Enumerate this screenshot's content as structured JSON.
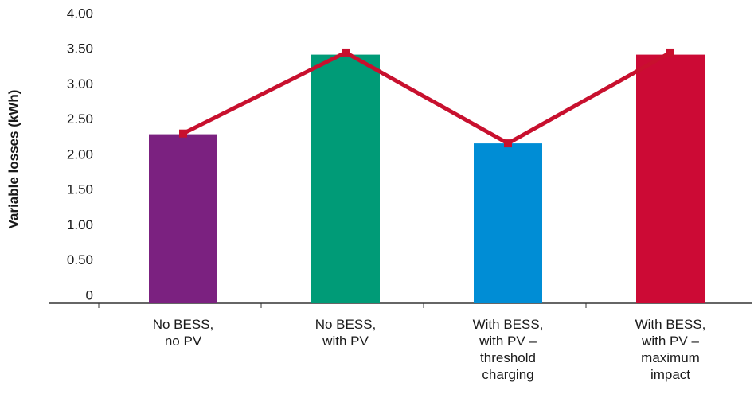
{
  "chart_data": {
    "type": "bar",
    "y_label": "Variable losses (kWh)",
    "categories": [
      [
        "No BESS,",
        "no PV"
      ],
      [
        "No BESS,",
        "with PV"
      ],
      [
        "With BESS,",
        "with PV –",
        "threshold",
        "charging"
      ],
      [
        "With BESS,",
        "with PV –",
        "maximum",
        "impact"
      ]
    ],
    "values": [
      2.4,
      3.53,
      2.27,
      3.53
    ],
    "colors": [
      "#7b2180",
      "#009b77",
      "#008dd5",
      "#cc0a35"
    ],
    "line": {
      "color": "#c8102e",
      "values": [
        2.41,
        3.56,
        2.27,
        3.56
      ]
    },
    "ylim": [
      0,
      4
    ],
    "yticks": [
      0,
      {
        "value": 0.5,
        "label": "0.50"
      },
      {
        "value": 1,
        "label": "1.00"
      },
      {
        "value": 1.5,
        "label": "1.50"
      },
      {
        "value": 2,
        "label": "2.00"
      },
      {
        "value": 2.5,
        "label": "2.50"
      },
      {
        "value": 3,
        "label": "3.00"
      },
      {
        "value": 3.5,
        "label": "3.50"
      },
      {
        "value": 4,
        "label": "4.00"
      }
    ]
  }
}
